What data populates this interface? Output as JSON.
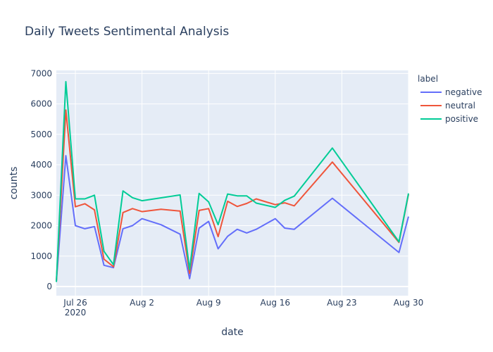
{
  "chart_data": {
    "type": "line",
    "title": "Daily Tweets Sentimental Analysis",
    "xlabel": "date",
    "ylabel": "counts",
    "legend_title": "label",
    "legend_position": "right",
    "grid": true,
    "colors": {
      "background": "#e5ecf6",
      "grid": "#ffffff",
      "text": "#2a3f5f"
    },
    "xlim": [
      "2020-07-24",
      "2020-08-30"
    ],
    "ylim": [
      -300,
      7100
    ],
    "x_ticks": [
      {
        "value": "2020-07-26",
        "label": "Jul 26",
        "sublabel": "2020"
      },
      {
        "value": "2020-08-02",
        "label": "Aug 2",
        "sublabel": ""
      },
      {
        "value": "2020-08-09",
        "label": "Aug 9",
        "sublabel": ""
      },
      {
        "value": "2020-08-16",
        "label": "Aug 16",
        "sublabel": ""
      },
      {
        "value": "2020-08-23",
        "label": "Aug 23",
        "sublabel": ""
      },
      {
        "value": "2020-08-30",
        "label": "Aug 30",
        "sublabel": ""
      }
    ],
    "y_ticks": [
      0,
      1000,
      2000,
      3000,
      4000,
      5000,
      6000,
      7000
    ],
    "series": [
      {
        "name": "negative",
        "color": "#636efa",
        "points": [
          [
            "2020-07-24",
            150
          ],
          [
            "2020-07-25",
            4300
          ],
          [
            "2020-07-26",
            2000
          ],
          [
            "2020-07-27",
            1900
          ],
          [
            "2020-07-28",
            1970
          ],
          [
            "2020-07-29",
            700
          ],
          [
            "2020-07-30",
            620
          ],
          [
            "2020-07-31",
            1900
          ],
          [
            "2020-08-01",
            2000
          ],
          [
            "2020-08-02",
            2230
          ],
          [
            "2020-08-04",
            2030
          ],
          [
            "2020-08-06",
            1720
          ],
          [
            "2020-08-07",
            260
          ],
          [
            "2020-08-08",
            1920
          ],
          [
            "2020-08-09",
            2140
          ],
          [
            "2020-08-10",
            1240
          ],
          [
            "2020-08-11",
            1650
          ],
          [
            "2020-08-12",
            1880
          ],
          [
            "2020-08-13",
            1760
          ],
          [
            "2020-08-14",
            1880
          ],
          [
            "2020-08-16",
            2230
          ],
          [
            "2020-08-17",
            1920
          ],
          [
            "2020-08-18",
            1880
          ],
          [
            "2020-08-22",
            2900
          ],
          [
            "2020-08-29",
            1120
          ],
          [
            "2020-08-30",
            2300
          ]
        ]
      },
      {
        "name": "neutral",
        "color": "#ef553b",
        "points": [
          [
            "2020-07-24",
            150
          ],
          [
            "2020-07-25",
            5800
          ],
          [
            "2020-07-26",
            2620
          ],
          [
            "2020-07-27",
            2720
          ],
          [
            "2020-07-28",
            2520
          ],
          [
            "2020-07-29",
            900
          ],
          [
            "2020-07-30",
            650
          ],
          [
            "2020-07-31",
            2430
          ],
          [
            "2020-08-01",
            2560
          ],
          [
            "2020-08-02",
            2460
          ],
          [
            "2020-08-04",
            2540
          ],
          [
            "2020-08-06",
            2480
          ],
          [
            "2020-08-07",
            430
          ],
          [
            "2020-08-08",
            2500
          ],
          [
            "2020-08-09",
            2560
          ],
          [
            "2020-08-10",
            1640
          ],
          [
            "2020-08-11",
            2800
          ],
          [
            "2020-08-12",
            2630
          ],
          [
            "2020-08-13",
            2730
          ],
          [
            "2020-08-14",
            2880
          ],
          [
            "2020-08-16",
            2690
          ],
          [
            "2020-08-17",
            2750
          ],
          [
            "2020-08-18",
            2650
          ],
          [
            "2020-08-22",
            4090
          ],
          [
            "2020-08-29",
            1450
          ],
          [
            "2020-08-30",
            3030
          ]
        ]
      },
      {
        "name": "positive",
        "color": "#00cc96",
        "points": [
          [
            "2020-07-24",
            150
          ],
          [
            "2020-07-25",
            6730
          ],
          [
            "2020-07-26",
            2880
          ],
          [
            "2020-07-27",
            2880
          ],
          [
            "2020-07-28",
            3000
          ],
          [
            "2020-07-29",
            1160
          ],
          [
            "2020-07-30",
            720
          ],
          [
            "2020-07-31",
            3140
          ],
          [
            "2020-08-01",
            2920
          ],
          [
            "2020-08-02",
            2820
          ],
          [
            "2020-08-06",
            3010
          ],
          [
            "2020-08-07",
            560
          ],
          [
            "2020-08-08",
            3060
          ],
          [
            "2020-08-09",
            2780
          ],
          [
            "2020-08-10",
            2030
          ],
          [
            "2020-08-11",
            3040
          ],
          [
            "2020-08-12",
            2980
          ],
          [
            "2020-08-13",
            2980
          ],
          [
            "2020-08-14",
            2740
          ],
          [
            "2020-08-16",
            2600
          ],
          [
            "2020-08-17",
            2830
          ],
          [
            "2020-08-18",
            2970
          ],
          [
            "2020-08-22",
            4550
          ],
          [
            "2020-08-29",
            1470
          ],
          [
            "2020-08-30",
            3060
          ]
        ]
      }
    ]
  }
}
